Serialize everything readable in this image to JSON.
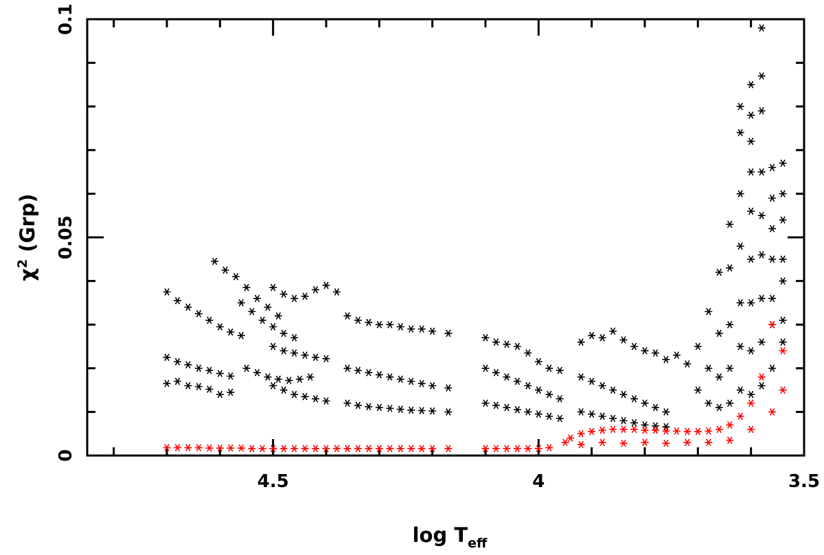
{
  "chart_data": {
    "type": "scatter",
    "title": "",
    "xlabel": {
      "main": "log T",
      "sub": "eff"
    },
    "ylabel": {
      "main": "χ",
      "sup": "2",
      "rest": " (Grp)"
    },
    "x_reversed": true,
    "xlim": [
      4.85,
      3.5
    ],
    "ylim": [
      0,
      0.1
    ],
    "x_ticks": [
      {
        "value": 4.5,
        "label": "4.5"
      },
      {
        "value": 4.0,
        "label": "4"
      },
      {
        "value": 3.5,
        "label": "3.5"
      }
    ],
    "y_ticks": [
      {
        "value": 0,
        "label": "0"
      },
      {
        "value": 0.05,
        "label": "0.05"
      },
      {
        "value": 0.1,
        "label": "0.1"
      }
    ],
    "grid": false,
    "legend": "none",
    "marker": "asterisk",
    "series": [
      {
        "color": "#000000",
        "points": [
          [
            4.7,
            0.0375
          ],
          [
            4.68,
            0.0355
          ],
          [
            4.66,
            0.034
          ],
          [
            4.64,
            0.0325
          ],
          [
            4.62,
            0.031
          ],
          [
            4.6,
            0.0295
          ],
          [
            4.58,
            0.0283
          ],
          [
            4.56,
            0.0275
          ],
          [
            4.7,
            0.0225
          ],
          [
            4.68,
            0.0215
          ],
          [
            4.66,
            0.0208
          ],
          [
            4.64,
            0.02
          ],
          [
            4.62,
            0.0195
          ],
          [
            4.6,
            0.0188
          ],
          [
            4.58,
            0.0182
          ],
          [
            4.7,
            0.0165
          ],
          [
            4.68,
            0.017
          ],
          [
            4.66,
            0.016
          ],
          [
            4.64,
            0.0158
          ],
          [
            4.62,
            0.0152
          ],
          [
            4.6,
            0.014
          ],
          [
            4.58,
            0.0145
          ],
          [
            4.61,
            0.0445
          ],
          [
            4.59,
            0.0425
          ],
          [
            4.57,
            0.041
          ],
          [
            4.55,
            0.0385
          ],
          [
            4.53,
            0.036
          ],
          [
            4.51,
            0.034
          ],
          [
            4.49,
            0.032
          ],
          [
            4.56,
            0.035
          ],
          [
            4.54,
            0.033
          ],
          [
            4.52,
            0.031
          ],
          [
            4.5,
            0.0295
          ],
          [
            4.48,
            0.028
          ],
          [
            4.46,
            0.027
          ],
          [
            4.55,
            0.02
          ],
          [
            4.53,
            0.019
          ],
          [
            4.51,
            0.018
          ],
          [
            4.49,
            0.0175
          ],
          [
            4.47,
            0.0172
          ],
          [
            4.45,
            0.0175
          ],
          [
            4.43,
            0.018
          ],
          [
            4.5,
            0.0385
          ],
          [
            4.48,
            0.037
          ],
          [
            4.46,
            0.036
          ],
          [
            4.44,
            0.0365
          ],
          [
            4.42,
            0.038
          ],
          [
            4.4,
            0.039
          ],
          [
            4.38,
            0.0375
          ],
          [
            4.5,
            0.025
          ],
          [
            4.48,
            0.024
          ],
          [
            4.46,
            0.0235
          ],
          [
            4.44,
            0.023
          ],
          [
            4.42,
            0.0225
          ],
          [
            4.4,
            0.0222
          ],
          [
            4.5,
            0.016
          ],
          [
            4.48,
            0.015
          ],
          [
            4.46,
            0.014
          ],
          [
            4.44,
            0.0135
          ],
          [
            4.42,
            0.013
          ],
          [
            4.4,
            0.0125
          ],
          [
            4.36,
            0.032
          ],
          [
            4.34,
            0.031
          ],
          [
            4.32,
            0.0305
          ],
          [
            4.3,
            0.03
          ],
          [
            4.28,
            0.03
          ],
          [
            4.26,
            0.0295
          ],
          [
            4.24,
            0.029
          ],
          [
            4.22,
            0.029
          ],
          [
            4.2,
            0.0285
          ],
          [
            4.17,
            0.028
          ],
          [
            4.36,
            0.02
          ],
          [
            4.34,
            0.0195
          ],
          [
            4.32,
            0.019
          ],
          [
            4.3,
            0.0185
          ],
          [
            4.28,
            0.018
          ],
          [
            4.26,
            0.0175
          ],
          [
            4.24,
            0.017
          ],
          [
            4.22,
            0.0165
          ],
          [
            4.2,
            0.016
          ],
          [
            4.17,
            0.0155
          ],
          [
            4.36,
            0.012
          ],
          [
            4.34,
            0.0115
          ],
          [
            4.32,
            0.0112
          ],
          [
            4.3,
            0.011
          ],
          [
            4.28,
            0.0108
          ],
          [
            4.26,
            0.0106
          ],
          [
            4.24,
            0.0104
          ],
          [
            4.22,
            0.0103
          ],
          [
            4.2,
            0.0102
          ],
          [
            4.17,
            0.01
          ],
          [
            4.1,
            0.027
          ],
          [
            4.08,
            0.026
          ],
          [
            4.06,
            0.0255
          ],
          [
            4.04,
            0.025
          ],
          [
            4.02,
            0.0235
          ],
          [
            4.0,
            0.0215
          ],
          [
            3.98,
            0.02
          ],
          [
            3.96,
            0.0195
          ],
          [
            4.1,
            0.02
          ],
          [
            4.08,
            0.019
          ],
          [
            4.06,
            0.018
          ],
          [
            4.04,
            0.017
          ],
          [
            4.02,
            0.016
          ],
          [
            4.0,
            0.015
          ],
          [
            3.98,
            0.014
          ],
          [
            3.96,
            0.013
          ],
          [
            4.1,
            0.012
          ],
          [
            4.08,
            0.0115
          ],
          [
            4.06,
            0.011
          ],
          [
            4.04,
            0.0105
          ],
          [
            4.02,
            0.01
          ],
          [
            4.0,
            0.0095
          ],
          [
            3.98,
            0.009
          ],
          [
            3.96,
            0.0085
          ],
          [
            3.92,
            0.026
          ],
          [
            3.9,
            0.0275
          ],
          [
            3.88,
            0.027
          ],
          [
            3.86,
            0.0285
          ],
          [
            3.84,
            0.0265
          ],
          [
            3.82,
            0.025
          ],
          [
            3.8,
            0.024
          ],
          [
            3.78,
            0.0235
          ],
          [
            3.76,
            0.022
          ],
          [
            3.92,
            0.018
          ],
          [
            3.9,
            0.017
          ],
          [
            3.88,
            0.016
          ],
          [
            3.86,
            0.015
          ],
          [
            3.84,
            0.014
          ],
          [
            3.82,
            0.013
          ],
          [
            3.8,
            0.012
          ],
          [
            3.78,
            0.011
          ],
          [
            3.76,
            0.01
          ],
          [
            3.92,
            0.01
          ],
          [
            3.9,
            0.0095
          ],
          [
            3.88,
            0.009
          ],
          [
            3.86,
            0.0085
          ],
          [
            3.84,
            0.008
          ],
          [
            3.82,
            0.0075
          ],
          [
            3.8,
            0.007
          ],
          [
            3.78,
            0.0068
          ],
          [
            3.76,
            0.0066
          ],
          [
            3.74,
            0.023
          ],
          [
            3.72,
            0.021
          ],
          [
            3.7,
            0.025
          ],
          [
            3.7,
            0.015
          ],
          [
            3.68,
            0.033
          ],
          [
            3.68,
            0.02
          ],
          [
            3.68,
            0.012
          ],
          [
            3.66,
            0.042
          ],
          [
            3.66,
            0.028
          ],
          [
            3.66,
            0.018
          ],
          [
            3.66,
            0.011
          ],
          [
            3.64,
            0.053
          ],
          [
            3.64,
            0.043
          ],
          [
            3.64,
            0.03
          ],
          [
            3.64,
            0.02
          ],
          [
            3.64,
            0.012
          ],
          [
            3.62,
            0.08
          ],
          [
            3.62,
            0.074
          ],
          [
            3.62,
            0.06
          ],
          [
            3.62,
            0.048
          ],
          [
            3.62,
            0.035
          ],
          [
            3.62,
            0.025
          ],
          [
            3.62,
            0.015
          ],
          [
            3.6,
            0.085
          ],
          [
            3.6,
            0.078
          ],
          [
            3.6,
            0.072
          ],
          [
            3.6,
            0.065
          ],
          [
            3.6,
            0.056
          ],
          [
            3.6,
            0.045
          ],
          [
            3.6,
            0.035
          ],
          [
            3.6,
            0.024
          ],
          [
            3.6,
            0.014
          ],
          [
            3.58,
            0.098
          ],
          [
            3.58,
            0.087
          ],
          [
            3.58,
            0.079
          ],
          [
            3.58,
            0.065
          ],
          [
            3.58,
            0.055
          ],
          [
            3.58,
            0.046
          ],
          [
            3.58,
            0.036
          ],
          [
            3.58,
            0.026
          ],
          [
            3.58,
            0.016
          ],
          [
            3.56,
            0.066
          ],
          [
            3.56,
            0.059
          ],
          [
            3.56,
            0.052
          ],
          [
            3.56,
            0.045
          ],
          [
            3.56,
            0.036
          ],
          [
            3.56,
            0.03
          ],
          [
            3.56,
            0.02
          ],
          [
            3.54,
            0.067
          ],
          [
            3.54,
            0.06
          ],
          [
            3.54,
            0.054
          ],
          [
            3.54,
            0.045
          ],
          [
            3.54,
            0.04
          ],
          [
            3.54,
            0.031
          ],
          [
            3.54,
            0.026
          ]
        ]
      },
      {
        "color": "#ff0000",
        "points": [
          [
            4.7,
            0.0018
          ],
          [
            4.68,
            0.0018
          ],
          [
            4.66,
            0.0018
          ],
          [
            4.64,
            0.0018
          ],
          [
            4.62,
            0.0017
          ],
          [
            4.6,
            0.0017
          ],
          [
            4.58,
            0.0017
          ],
          [
            4.56,
            0.0017
          ],
          [
            4.54,
            0.0016
          ],
          [
            4.52,
            0.0016
          ],
          [
            4.5,
            0.0016
          ],
          [
            4.48,
            0.0016
          ],
          [
            4.46,
            0.0016
          ],
          [
            4.44,
            0.0016
          ],
          [
            4.42,
            0.0016
          ],
          [
            4.4,
            0.0016
          ],
          [
            4.38,
            0.0016
          ],
          [
            4.36,
            0.0016
          ],
          [
            4.34,
            0.0016
          ],
          [
            4.32,
            0.0016
          ],
          [
            4.3,
            0.0016
          ],
          [
            4.28,
            0.0016
          ],
          [
            4.26,
            0.0016
          ],
          [
            4.24,
            0.0016
          ],
          [
            4.22,
            0.0016
          ],
          [
            4.2,
            0.0016
          ],
          [
            4.17,
            0.0016
          ],
          [
            4.1,
            0.0016
          ],
          [
            4.08,
            0.0016
          ],
          [
            4.06,
            0.0016
          ],
          [
            4.04,
            0.0016
          ],
          [
            4.02,
            0.0016
          ],
          [
            4.0,
            0.0016
          ],
          [
            3.98,
            0.0018
          ],
          [
            3.95,
            0.003
          ],
          [
            3.94,
            0.004
          ],
          [
            3.92,
            0.005
          ],
          [
            3.9,
            0.0055
          ],
          [
            3.88,
            0.0058
          ],
          [
            3.86,
            0.006
          ],
          [
            3.84,
            0.006
          ],
          [
            3.82,
            0.006
          ],
          [
            3.8,
            0.0058
          ],
          [
            3.78,
            0.0058
          ],
          [
            3.76,
            0.0056
          ],
          [
            3.74,
            0.0056
          ],
          [
            3.72,
            0.0055
          ],
          [
            3.7,
            0.0055
          ],
          [
            3.68,
            0.0056
          ],
          [
            3.66,
            0.006
          ],
          [
            3.64,
            0.007
          ],
          [
            3.62,
            0.009
          ],
          [
            3.6,
            0.012
          ],
          [
            3.58,
            0.018
          ],
          [
            3.56,
            0.03
          ],
          [
            3.54,
            0.024
          ],
          [
            3.92,
            0.0025
          ],
          [
            3.88,
            0.003
          ],
          [
            3.84,
            0.0028
          ],
          [
            3.8,
            0.003
          ],
          [
            3.76,
            0.0028
          ],
          [
            3.72,
            0.003
          ],
          [
            3.68,
            0.003
          ],
          [
            3.64,
            0.0035
          ],
          [
            3.6,
            0.006
          ],
          [
            3.56,
            0.01
          ],
          [
            3.54,
            0.015
          ]
        ]
      }
    ]
  }
}
